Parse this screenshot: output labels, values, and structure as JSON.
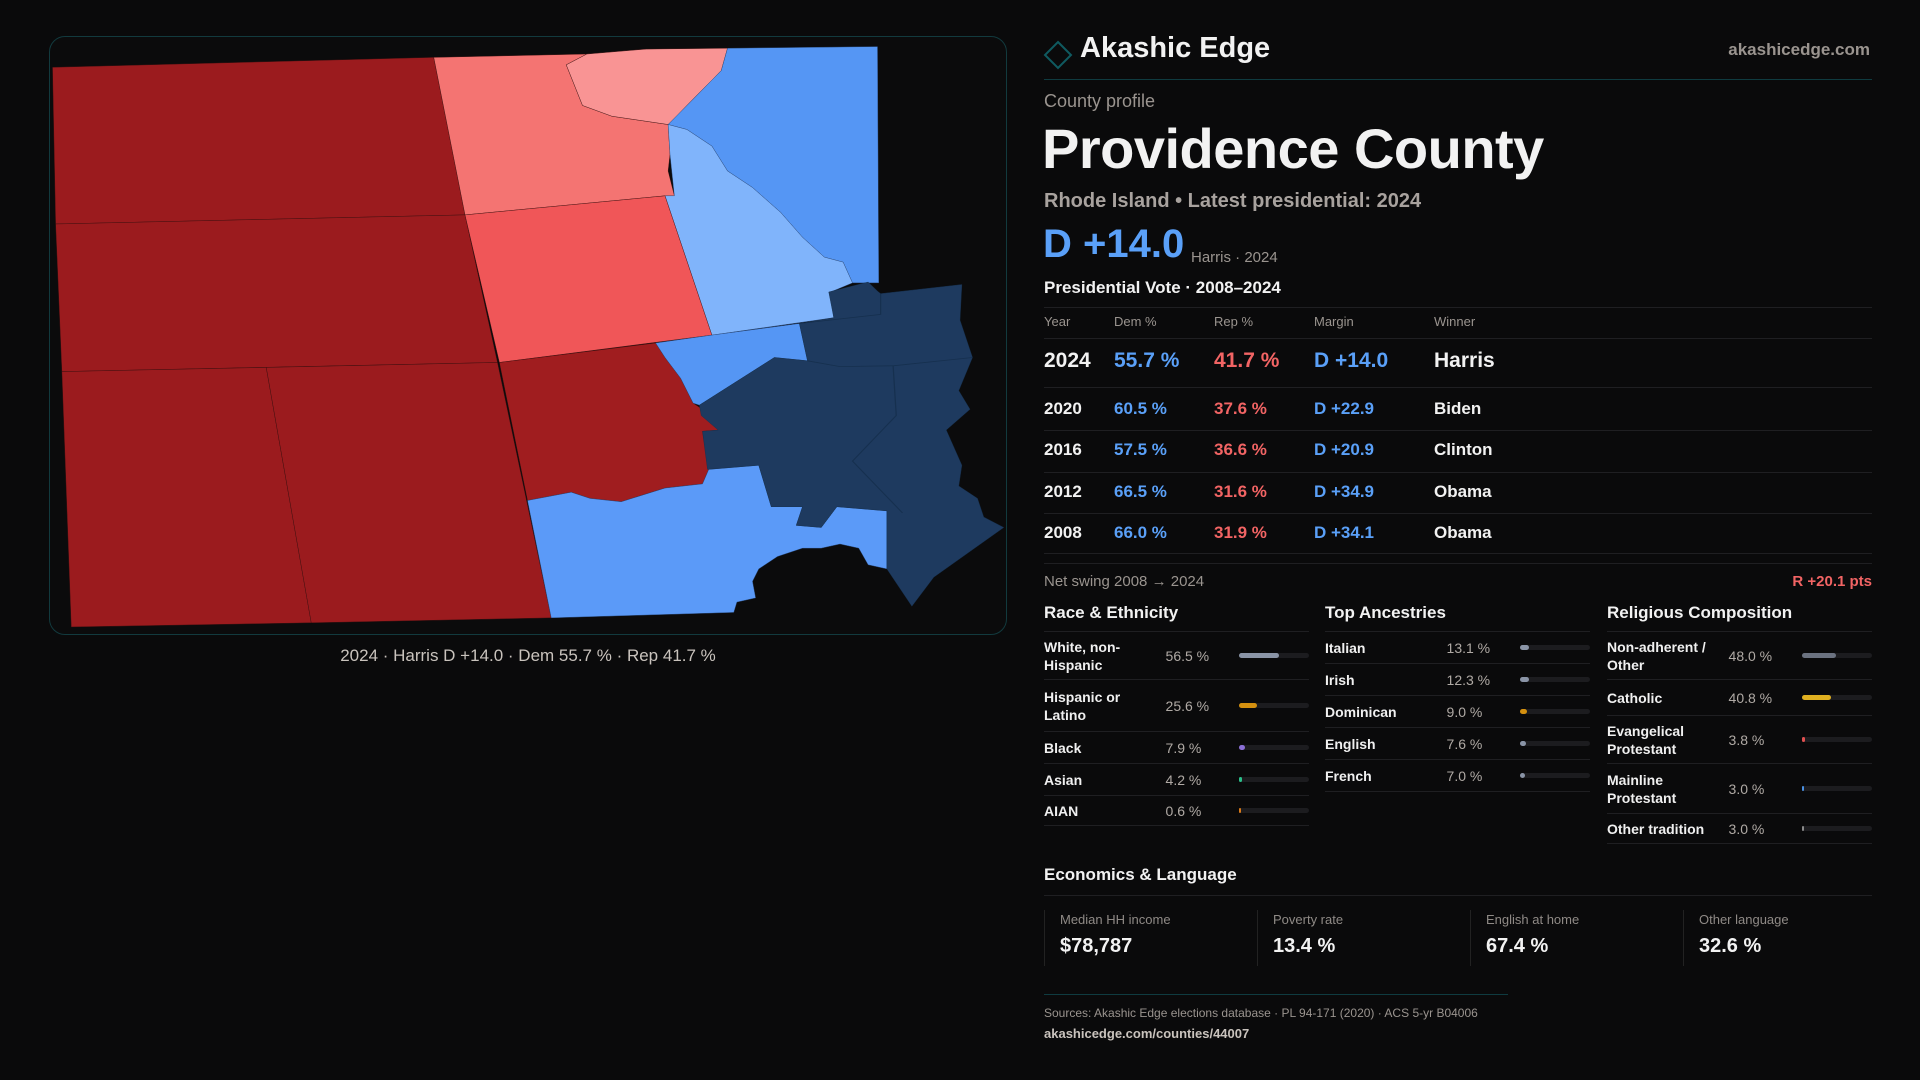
{
  "brand": {
    "name": "Akashic Edge",
    "site": "akashicedge.com"
  },
  "map": {
    "caption": "2024 · Harris D +14.0 · Dem 55.7 % · Rep 41.7 %",
    "colors": {
      "safe_r": "#9b1b1e",
      "lean_r": "#f47472",
      "tilt_r": "#f99494",
      "likely_r": "#f05658",
      "r2": "#a01d1f",
      "lean_d": "#5596f4",
      "tilt_d": "#80b4fb",
      "safe_d": "#1e3a5f",
      "d2": "#5b9af8"
    }
  },
  "profile": {
    "kicker": "County profile",
    "title": "Providence County",
    "subtitle": "Rhode Island • Latest presidential: 2024",
    "margin": "D +14.0",
    "margin_note": "Harris · 2024"
  },
  "votes": {
    "title": "Presidential Vote · 2008–2024",
    "headers": [
      "Year",
      "Dem %",
      "Rep %",
      "Margin",
      "Winner"
    ],
    "rows": [
      [
        "2024",
        "55.7 %",
        "41.7 %",
        "D +14.0",
        "Harris"
      ],
      [
        "2020",
        "60.5 %",
        "37.6 %",
        "D +22.9",
        "Biden"
      ],
      [
        "2016",
        "57.5 %",
        "36.6 %",
        "D +20.9",
        "Clinton"
      ],
      [
        "2012",
        "66.5 %",
        "31.6 %",
        "D +34.9",
        "Obama"
      ],
      [
        "2008",
        "66.0 %",
        "31.9 %",
        "D +34.1",
        "Obama"
      ]
    ],
    "swing_label": "Net swing 2008 → 2024",
    "swing_value": "R +20.1 pts"
  },
  "race": {
    "title": "Race & Ethnicity",
    "items": [
      {
        "label": "White, non-Hispanic",
        "value": "56.5 %",
        "pct": 56.5,
        "color": "#8a94a6"
      },
      {
        "label": "Hispanic or Latino",
        "value": "25.6 %",
        "pct": 25.6,
        "color": "#d4900f"
      },
      {
        "label": "Black",
        "value": "7.9 %",
        "pct": 7.9,
        "color": "#8b6fd6"
      },
      {
        "label": "Asian",
        "value": "4.2 %",
        "pct": 4.2,
        "color": "#2bbf8a"
      },
      {
        "label": "AIAN",
        "value": "0.6 %",
        "pct": 0.6,
        "color": "#d97a1a"
      }
    ]
  },
  "ancestry": {
    "title": "Top Ancestries",
    "items": [
      {
        "label": "Italian",
        "value": "13.1 %",
        "pct": 13.1,
        "color": "#8a94a6"
      },
      {
        "label": "Irish",
        "value": "12.3 %",
        "pct": 12.3,
        "color": "#8a94a6"
      },
      {
        "label": "Dominican",
        "value": "9.0 %",
        "pct": 9.0,
        "color": "#d4900f"
      },
      {
        "label": "English",
        "value": "7.6 %",
        "pct": 7.6,
        "color": "#8a94a6"
      },
      {
        "label": "French",
        "value": "7.0 %",
        "pct": 7.0,
        "color": "#8a94a6"
      }
    ]
  },
  "religion": {
    "title": "Religious Composition",
    "items": [
      {
        "label": "Non-adherent / Other",
        "value": "48.0 %",
        "pct": 48.0,
        "color": "#6b7280"
      },
      {
        "label": "Catholic",
        "value": "40.8 %",
        "pct": 40.8,
        "color": "#e0b020"
      },
      {
        "label": "Evangelical Protestant",
        "value": "3.8 %",
        "pct": 3.8,
        "color": "#e05050"
      },
      {
        "label": "Mainline Protestant",
        "value": "3.0 %",
        "pct": 3.0,
        "color": "#4a90e2"
      },
      {
        "label": "Other tradition",
        "value": "3.0 %",
        "pct": 3.0,
        "color": "#8a8a8a"
      }
    ]
  },
  "economics": {
    "title": "Economics & Language",
    "stats": [
      {
        "label": "Median HH income",
        "value": "$78,787"
      },
      {
        "label": "Poverty rate",
        "value": "13.4 %"
      },
      {
        "label": "English at home",
        "value": "67.4 %"
      },
      {
        "label": "Other language",
        "value": "32.6 %"
      }
    ]
  },
  "footer": {
    "sources": "Sources: Akashic Edge elections database · PL 94-171 (2020) · ACS 5-yr B04006",
    "url": "akashicedge.com/counties/44007"
  }
}
